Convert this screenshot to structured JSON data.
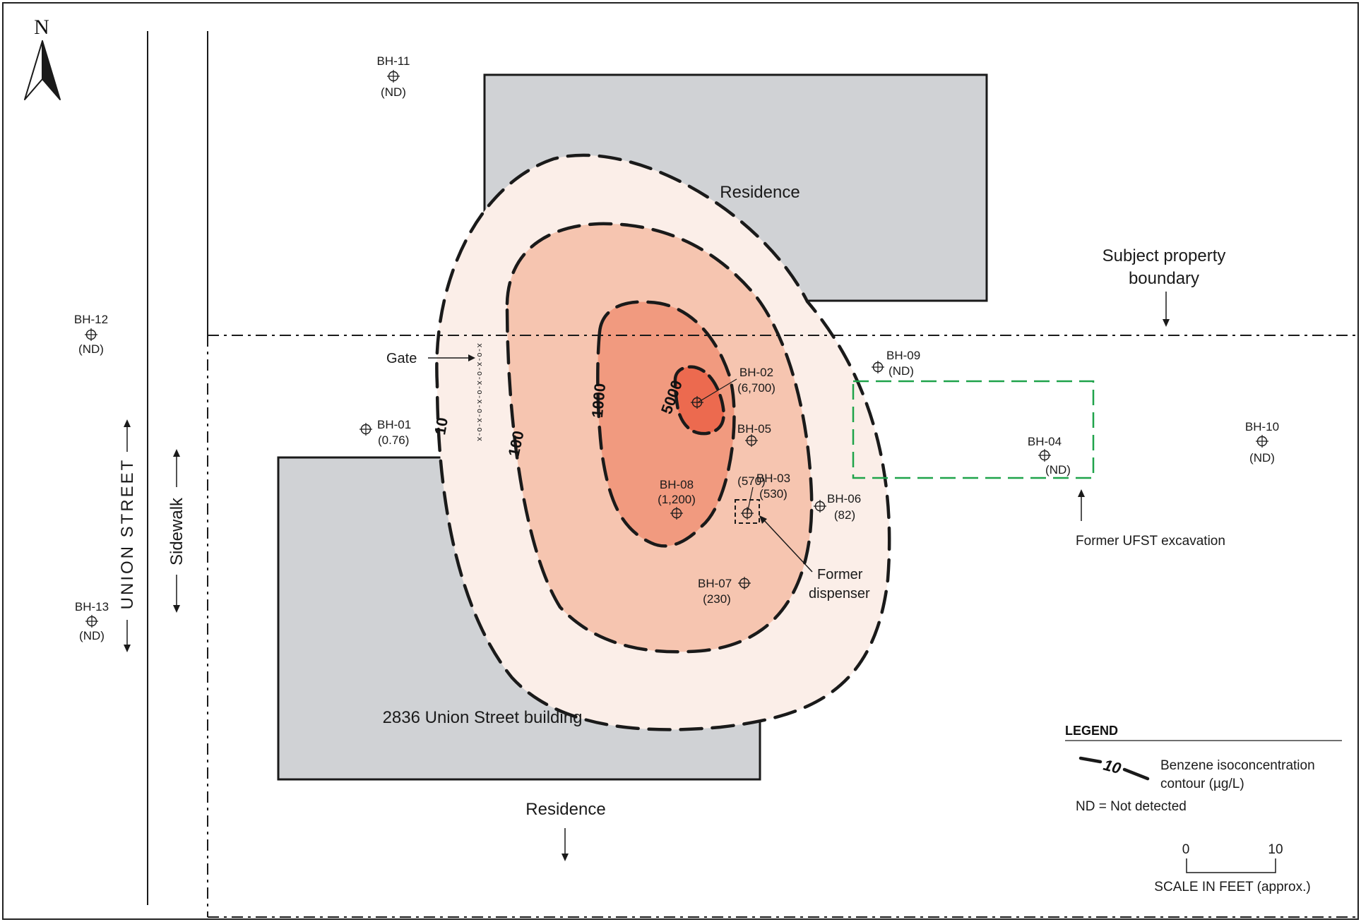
{
  "north_label": "N",
  "street_label": "UNION STREET",
  "sidewalk_label": "Sidewalk",
  "gate_label": "Gate",
  "fence_pattern": "x-o-x-o-x-o-x-o-x-o-x",
  "buildings": {
    "residence_north": "Residence",
    "union_building": "2836 Union Street building",
    "residence_south": "Residence"
  },
  "annotations": {
    "boundary_line1": "Subject property",
    "boundary_line2": "boundary",
    "ufst": "Former UFST excavation",
    "dispenser_line1": "Former",
    "dispenser_line2": "dispenser"
  },
  "contours": [
    {
      "value": "10",
      "fill": "#fbeee8"
    },
    {
      "value": "100",
      "fill": "#f6c5b0"
    },
    {
      "value": "1000",
      "fill": "#f19a7f"
    },
    {
      "value": "5000",
      "fill": "#ec6a4f"
    }
  ],
  "boreholes": [
    {
      "id": "BH-01",
      "value": "(0.76)"
    },
    {
      "id": "BH-02",
      "value": "(6,700)"
    },
    {
      "id": "BH-03",
      "value": "(530)"
    },
    {
      "id": "BH-04",
      "value": "(ND)"
    },
    {
      "id": "BH-05",
      "value": "(570)"
    },
    {
      "id": "BH-06",
      "value": "(82)"
    },
    {
      "id": "BH-07",
      "value": "(230)"
    },
    {
      "id": "BH-08",
      "value": "(1,200)"
    },
    {
      "id": "BH-09",
      "value": "(ND)"
    },
    {
      "id": "BH-10",
      "value": "(ND)"
    },
    {
      "id": "BH-11",
      "value": "(ND)"
    },
    {
      "id": "BH-12",
      "value": "(ND)"
    },
    {
      "id": "BH-13",
      "value": "(ND)"
    }
  ],
  "legend": {
    "title": "LEGEND",
    "contour_sample": "10",
    "contour_desc_line1": "Benzene isoconcentration",
    "contour_desc_line2": "contour (µg/L)",
    "nd_note": "ND = Not detected",
    "scale_start": "0",
    "scale_end": "10",
    "scale_label": "SCALE IN FEET (approx.)"
  },
  "colors": {
    "building_fill": "#d0d2d5",
    "ufst_outline": "#1fa34a",
    "contour_line": "#1a1a1a"
  }
}
